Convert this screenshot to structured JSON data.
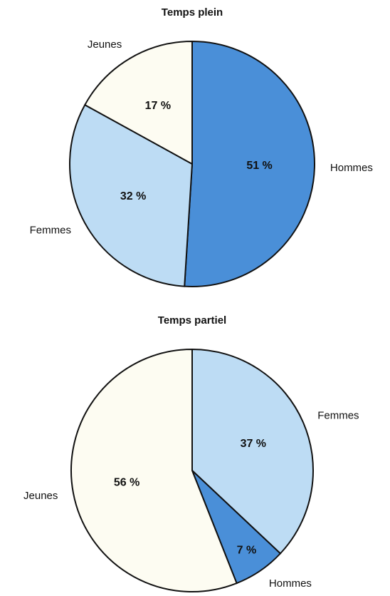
{
  "chart_data": [
    {
      "type": "pie",
      "title": "Temps plein",
      "categories": [
        "Hommes",
        "Femmes",
        "Jeunes"
      ],
      "values": [
        51,
        32,
        17
      ],
      "value_labels": [
        "51 %",
        "32 %",
        "17 %"
      ],
      "colors": [
        "#4a8fd8",
        "#bddcf4",
        "#fdfcf2"
      ]
    },
    {
      "type": "pie",
      "title": "Temps partiel",
      "categories": [
        "Femmes",
        "Hommes",
        "Jeunes"
      ],
      "values": [
        37,
        7,
        56
      ],
      "value_labels": [
        "37 %",
        "7 %",
        "56 %"
      ],
      "colors": [
        "#bddcf4",
        "#4a8fd8",
        "#fdfcf2"
      ]
    }
  ]
}
